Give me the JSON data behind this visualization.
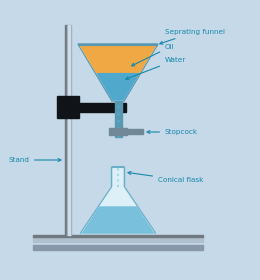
{
  "bg_color": "#c5d9e8",
  "stand_rod_color": "#9aaab8",
  "stand_rod_highlight": "#d0dce8",
  "stand_rod_shadow": "#707880",
  "base_color": "#8898a8",
  "base_highlight": "#b0c0cc",
  "clamp_color": "#101418",
  "funnel_outline": "#5898b0",
  "funnel_glass_bg": "#ddeef5",
  "oil_color": "#f0a844",
  "water_color_funnel": "#50a8cc",
  "stem_color": "#5898b0",
  "stopcock_body": "#708898",
  "stopcock_handle": "#708898",
  "flask_outline": "#6aaec8",
  "flask_glass_bg": "#ddf0f8",
  "flask_water": "#78c0dc",
  "label_color": "#1888aa",
  "arrow_color": "#1888aa",
  "font_size": 5.2,
  "labels": {
    "sep_funnel": "Seprating funnel",
    "oil": "Oil",
    "water": "Water",
    "stopcock": "Stopcock",
    "stand": "Stand",
    "conical_flask": "Conical flask"
  }
}
